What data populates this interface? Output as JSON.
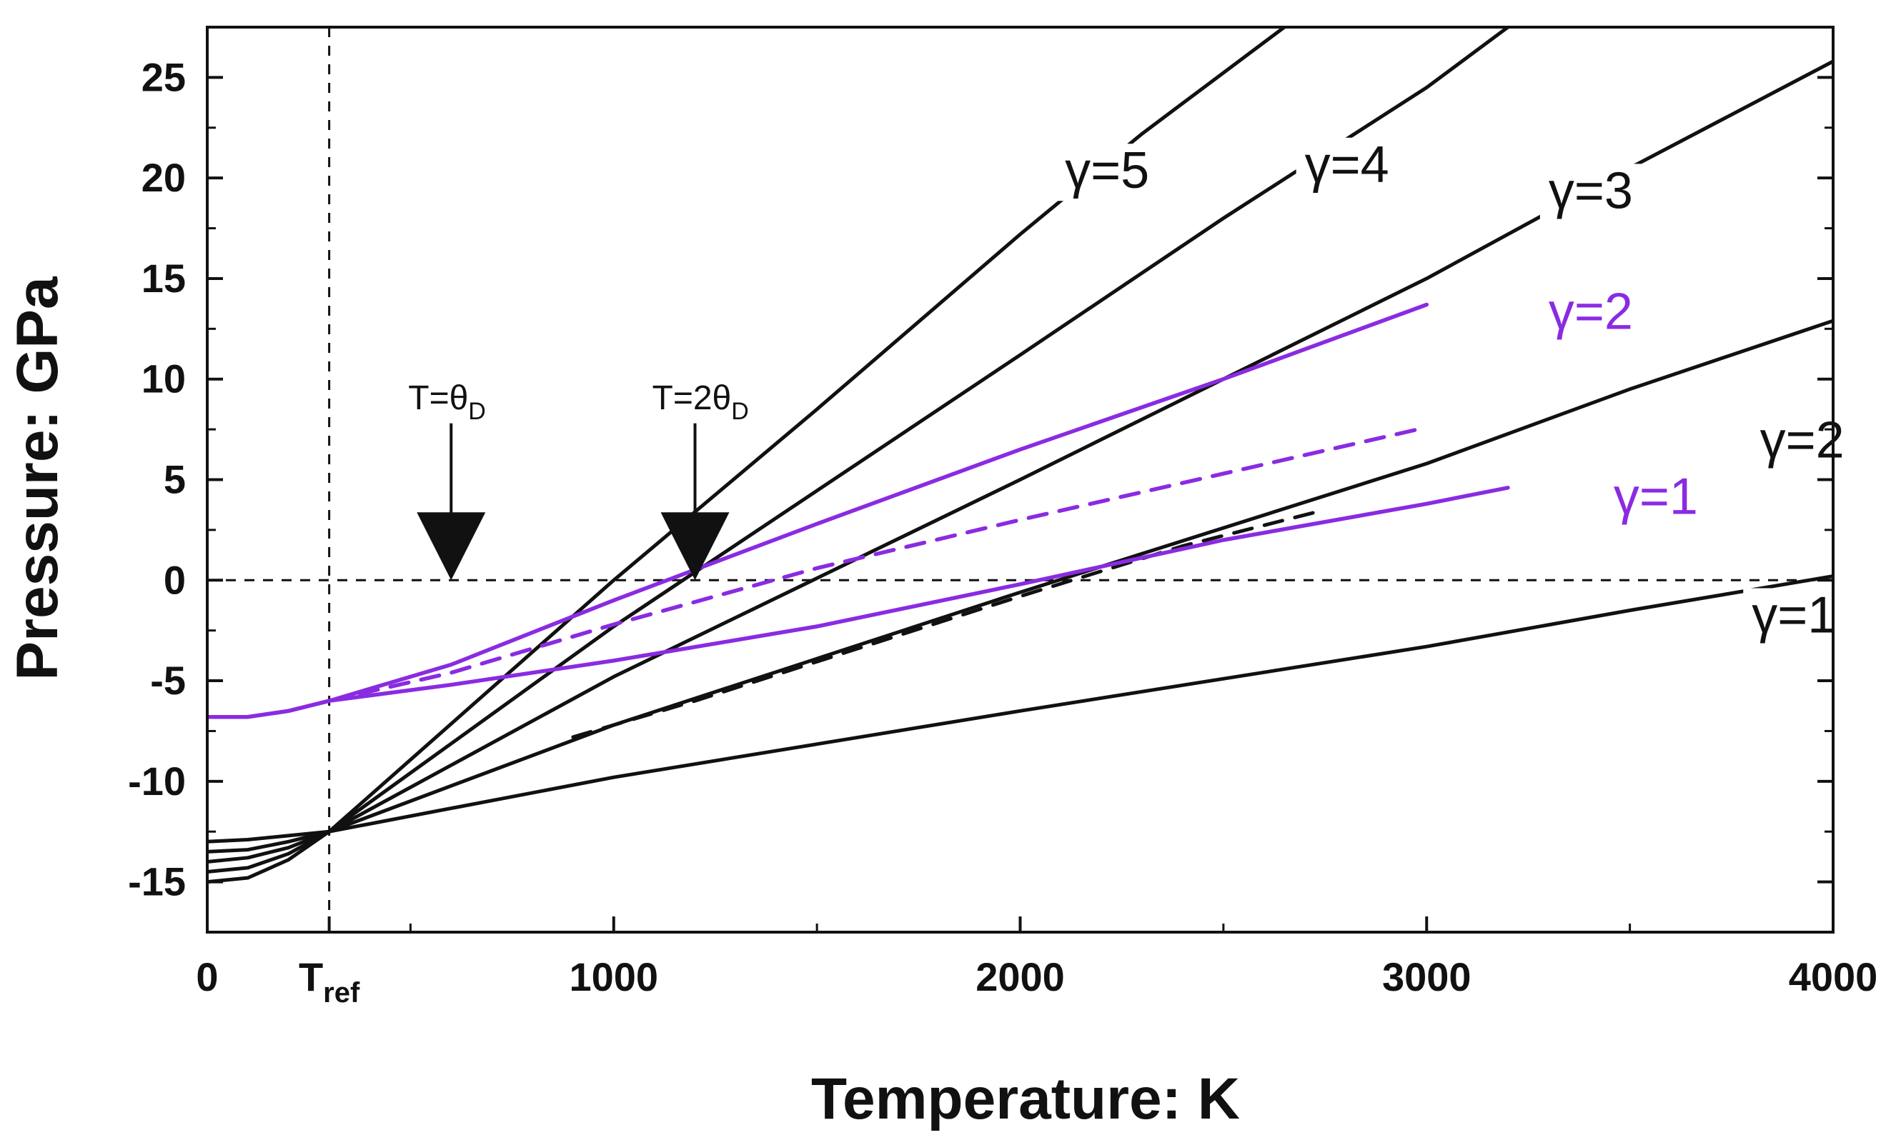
{
  "chart_data": {
    "type": "line",
    "title": "",
    "xlabel": "Temperature: K",
    "ylabel": "Pressure: GPa",
    "xlim": [
      0,
      4000
    ],
    "ylim": [
      -17.5,
      27.5
    ],
    "grid": false,
    "x_ticks": [
      {
        "value": 0,
        "label": "0"
      },
      {
        "value": 300,
        "label": "T",
        "sub": "ref"
      },
      {
        "value": 1000,
        "label": "1000"
      },
      {
        "value": 2000,
        "label": "2000"
      },
      {
        "value": 3000,
        "label": "3000"
      },
      {
        "value": 4000,
        "label": "4000"
      }
    ],
    "y_ticks": [
      -15,
      -10,
      -5,
      0,
      5,
      10,
      15,
      20,
      25
    ],
    "reference_lines": {
      "x": 300,
      "y": 0
    },
    "colors": {
      "black": "#111111",
      "purple": "#8a2be2"
    },
    "series": [
      {
        "name": "γ=1",
        "color": "#111111",
        "dash": false,
        "x": [
          0,
          100,
          200,
          300,
          1000,
          2000,
          3000,
          3500,
          4000
        ],
        "y": [
          -13.0,
          -12.9,
          -12.7,
          -12.5,
          -9.8,
          -6.5,
          -3.3,
          -1.5,
          0.2
        ]
      },
      {
        "name": "γ=2",
        "color": "#111111",
        "dash": false,
        "x": [
          0,
          100,
          200,
          300,
          1000,
          2000,
          3000,
          3500,
          4000
        ],
        "y": [
          -13.5,
          -13.4,
          -13.0,
          -12.5,
          -7.2,
          -0.6,
          5.8,
          9.5,
          12.9
        ]
      },
      {
        "name": "γ=2 (dashed)",
        "color": "#111111",
        "dash": true,
        "x": [
          900,
          1200,
          1600,
          2000,
          2400,
          2750
        ],
        "y": [
          -7.8,
          -6.0,
          -3.4,
          -0.8,
          1.7,
          3.5
        ]
      },
      {
        "name": "γ=3",
        "color": "#111111",
        "dash": false,
        "x": [
          0,
          100,
          200,
          300,
          1000,
          2000,
          3000,
          3500,
          4000
        ],
        "y": [
          -14.0,
          -13.8,
          -13.3,
          -12.5,
          -4.8,
          5.0,
          15.0,
          20.5,
          25.8
        ]
      },
      {
        "name": "γ=4",
        "color": "#111111",
        "dash": false,
        "x": [
          0,
          100,
          200,
          300,
          1000,
          2000,
          2500,
          3000,
          3200
        ],
        "y": [
          -14.5,
          -14.3,
          -13.6,
          -12.5,
          -2.3,
          11.2,
          18.0,
          24.5,
          27.5
        ]
      },
      {
        "name": "γ=5",
        "color": "#111111",
        "dash": false,
        "x": [
          0,
          100,
          200,
          300,
          1000,
          1500,
          2000,
          2300,
          2650
        ],
        "y": [
          -15.0,
          -14.8,
          -13.9,
          -12.5,
          0.0,
          8.5,
          17.2,
          22.2,
          27.5
        ]
      },
      {
        "name": "γ=2 (purple)",
        "color": "#8a2be2",
        "dash": false,
        "x": [
          0,
          100,
          200,
          300,
          600,
          1000,
          1500,
          2000,
          2500,
          3000
        ],
        "y": [
          -6.8,
          -6.8,
          -6.5,
          -6.0,
          -4.2,
          -1.0,
          2.8,
          6.5,
          10.0,
          13.7
        ]
      },
      {
        "name": "γ=2 (purple, dashed)",
        "color": "#8a2be2",
        "dash": true,
        "x": [
          300,
          600,
          1000,
          1500,
          2000,
          2500,
          3000
        ],
        "y": [
          -6.0,
          -4.6,
          -2.2,
          0.6,
          3.0,
          5.3,
          7.6
        ]
      },
      {
        "name": "γ=1 (purple)",
        "color": "#8a2be2",
        "dash": false,
        "x": [
          0,
          100,
          200,
          300,
          600,
          1000,
          1500,
          2000,
          2500,
          3000,
          3200
        ],
        "y": [
          -6.8,
          -6.8,
          -6.5,
          -6.0,
          -5.2,
          -4.0,
          -2.3,
          -0.2,
          2.0,
          3.8,
          4.6
        ]
      }
    ],
    "curve_labels": [
      {
        "text": "γ=5",
        "color": "#111111",
        "x": 2110,
        "y": 19.5
      },
      {
        "text": "γ=4",
        "color": "#111111",
        "x": 2700,
        "y": 19.8
      },
      {
        "text": "γ=3",
        "color": "#111111",
        "x": 3300,
        "y": 18.5
      },
      {
        "text": "γ=2",
        "color": "#8a2be2",
        "x": 3300,
        "y": 12.5
      },
      {
        "text": "γ=2",
        "color": "#111111",
        "x": 3820,
        "y": 6.1
      },
      {
        "text": "γ=1",
        "color": "#8a2be2",
        "x": 3460,
        "y": 3.3
      },
      {
        "text": "γ=1",
        "color": "#111111",
        "x": 3800,
        "y": -2.6
      }
    ],
    "annotations": [
      {
        "text": "T=θ",
        "sub": "D",
        "x": 600,
        "arrow_top": 7.8,
        "arrow_tip": 0.0,
        "label_y": 8.5
      },
      {
        "text": "T=2θ",
        "sub": "D",
        "x": 1200,
        "arrow_top": 7.8,
        "arrow_tip": 0.0,
        "label_y": 8.5
      }
    ]
  }
}
